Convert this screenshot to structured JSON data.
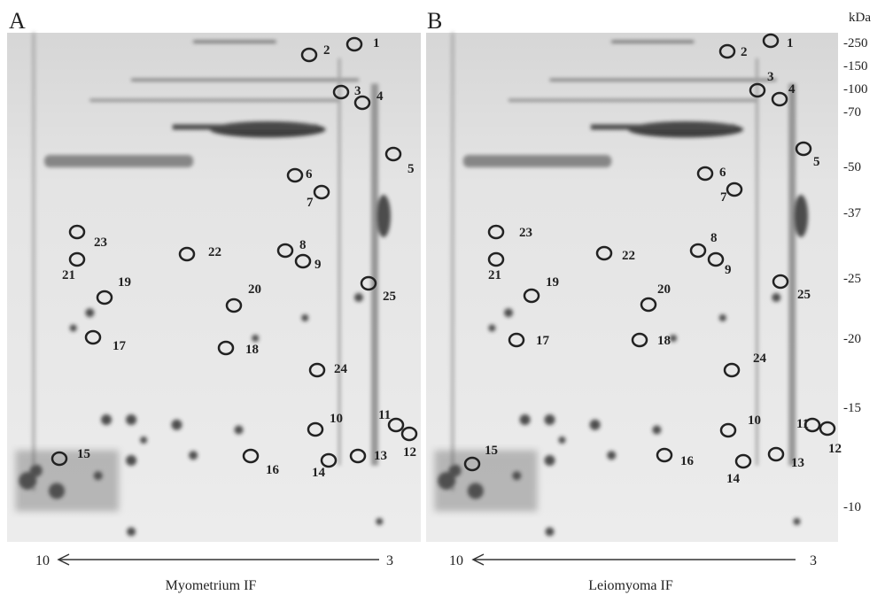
{
  "figure": {
    "panels": [
      {
        "letter": "A",
        "caption": "Myometrium IF",
        "ph_left": "10",
        "ph_right": "3",
        "spots": [
          "1",
          "2",
          "3",
          "4",
          "5",
          "6",
          "7",
          "8",
          "9",
          "10",
          "11",
          "12",
          "13",
          "14",
          "15",
          "16",
          "17",
          "18",
          "19",
          "20",
          "21",
          "22",
          "23",
          "24",
          "25"
        ]
      },
      {
        "letter": "B",
        "caption": "Leiomyoma IF",
        "ph_left": "10",
        "ph_right": "3",
        "spots": [
          "1",
          "2",
          "3",
          "4",
          "5",
          "6",
          "7",
          "8",
          "9",
          "10",
          "11",
          "12",
          "13",
          "14",
          "15",
          "16",
          "17",
          "18",
          "19",
          "20",
          "21",
          "22",
          "23",
          "24",
          "25"
        ]
      }
    ],
    "kda": {
      "title": "kDa",
      "markers": [
        "-250",
        "-150",
        "-100",
        "-70",
        "-50",
        "-37",
        "-25",
        "-20",
        "-15",
        "-10"
      ]
    }
  }
}
